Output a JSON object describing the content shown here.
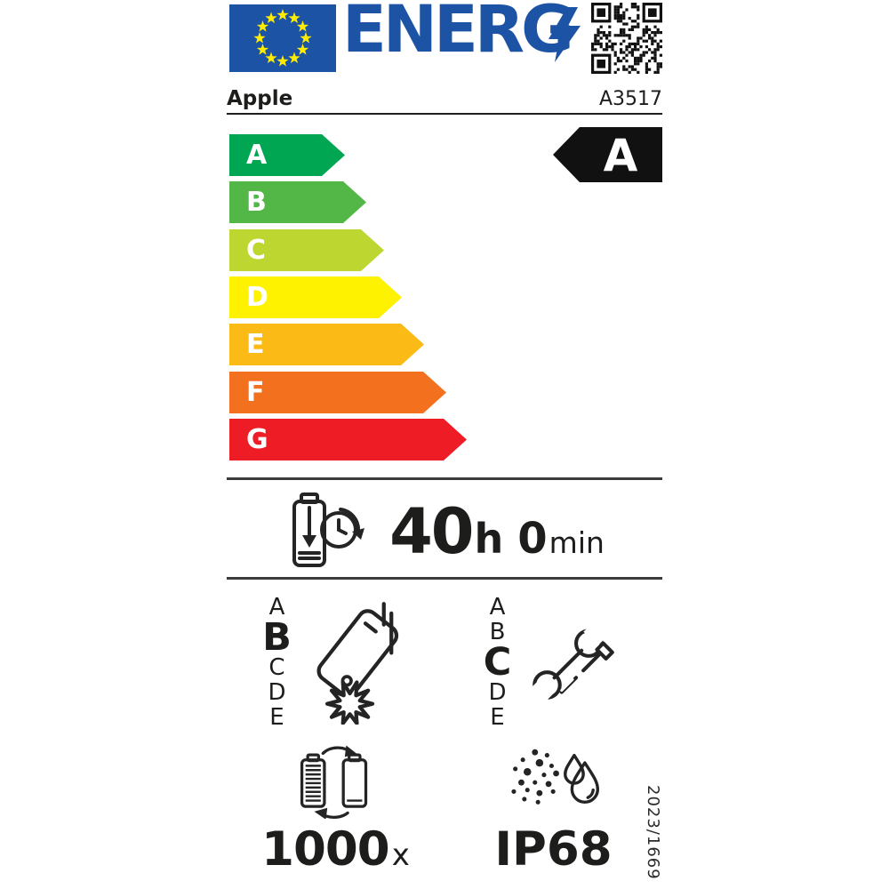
{
  "header": {
    "logo_text": "ENERG",
    "logo_bolt_icon": "lightning-bolt",
    "qr_icon": "qr-code",
    "eu_flag_icon": "eu-flag"
  },
  "brand": {
    "manufacturer": "Apple",
    "model": "A3517"
  },
  "energy_scale": {
    "rated_class": "A",
    "classes": [
      {
        "label": "A",
        "color": "#00a651"
      },
      {
        "label": "B",
        "color": "#52b747"
      },
      {
        "label": "C",
        "color": "#bed630"
      },
      {
        "label": "D",
        "color": "#fef200"
      },
      {
        "label": "E",
        "color": "#fbba16"
      },
      {
        "label": "F",
        "color": "#f3701f"
      },
      {
        "label": "G",
        "color": "#ee1d25"
      }
    ]
  },
  "battery_life": {
    "hours": "40",
    "hours_unit": "h",
    "minutes": "0",
    "minutes_unit": "min"
  },
  "drop_resistance": {
    "scale": [
      "A",
      "B",
      "C",
      "D",
      "E"
    ],
    "rated_class": "B"
  },
  "repairability": {
    "scale": [
      "A",
      "B",
      "C",
      "D",
      "E"
    ],
    "rated_class": "C"
  },
  "battery_endurance": {
    "cycles": "1000",
    "unit": "x"
  },
  "ingress_protection": {
    "rating": "IP68"
  },
  "regulation_number": "2023/1669",
  "colors": {
    "eu_blue": "#1d53a4",
    "star_yellow": "#ffec00",
    "ink": "#1d1d1b"
  }
}
